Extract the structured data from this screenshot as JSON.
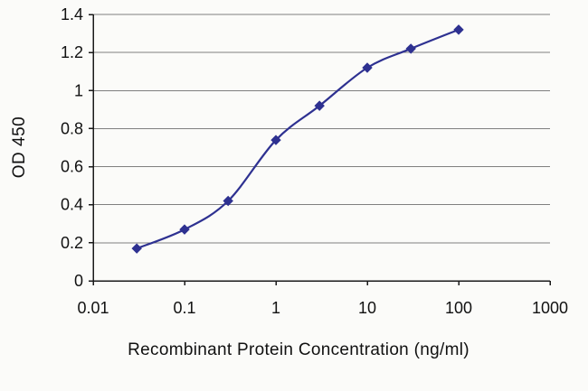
{
  "chart_data": {
    "type": "line",
    "title": "",
    "xlabel": "Recombinant Protein Concentration (ng/ml)",
    "ylabel": "OD 450",
    "x_scale": "log",
    "xlim": [
      0.01,
      1000
    ],
    "ylim": [
      0,
      1.4
    ],
    "x_ticks": [
      {
        "value": 0.01,
        "label": "0.01"
      },
      {
        "value": 0.1,
        "label": "0.1"
      },
      {
        "value": 1,
        "label": "1"
      },
      {
        "value": 10,
        "label": "10"
      },
      {
        "value": 100,
        "label": "100"
      },
      {
        "value": 1000,
        "label": "1000"
      }
    ],
    "y_ticks": [
      {
        "value": 0,
        "label": "0"
      },
      {
        "value": 0.2,
        "label": "0.2"
      },
      {
        "value": 0.4,
        "label": "0.4"
      },
      {
        "value": 0.6,
        "label": "0.6"
      },
      {
        "value": 0.8,
        "label": "0.8"
      },
      {
        "value": 1,
        "label": "1"
      },
      {
        "value": 1.2,
        "label": "1.2"
      },
      {
        "value": 1.4,
        "label": "1.4"
      }
    ],
    "grid": "horizontal",
    "legend": "none",
    "series": [
      {
        "name": "OD 450",
        "marker": "diamond",
        "x": [
          0.03,
          0.1,
          0.3,
          1,
          3,
          10,
          30,
          100
        ],
        "y": [
          0.17,
          0.27,
          0.42,
          0.74,
          0.92,
          1.12,
          1.22,
          1.32
        ]
      }
    ]
  },
  "colors": {
    "series": "#2e3191",
    "grid": "#7f7f7f",
    "axis": "#1a1a1a",
    "text": "#111111",
    "background": "#fbfbf9"
  }
}
